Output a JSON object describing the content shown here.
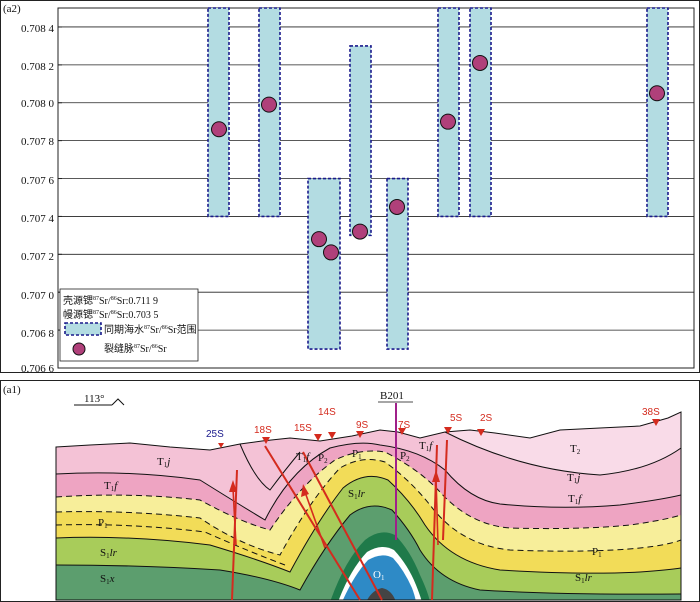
{
  "panel_a2": {
    "label": "(a2)",
    "y_ticks": [
      "0.708 4",
      "0.708 2",
      "0.708 0",
      "0.707 8",
      "0.707 6",
      "0.707 4",
      "0.707 2",
      "0.707 0",
      "0.706 8",
      "0.706 6"
    ],
    "legend": {
      "crust_prefix": "壳源锶",
      "crust_value": ":0.711 9",
      "mantle_prefix": "幔源锶",
      "mantle_value": ":0.703 5",
      "range_prefix": "同期海水",
      "range_suffix": "范围",
      "vein_prefix": "裂缝脉",
      "sr87": "87",
      "sr86": "86",
      "sr": "Sr",
      "slash": "/"
    }
  },
  "chart_data": {
    "type": "scatter",
    "ylim": [
      0.7066,
      0.7085
    ],
    "range_boxes": [
      {
        "low": 0.7074,
        "high": 0.7085
      },
      {
        "low": 0.7074,
        "high": 0.7085
      },
      {
        "low": 0.7067,
        "high": 0.7076
      },
      {
        "low": 0.7073,
        "high": 0.7083
      },
      {
        "low": 0.7067,
        "high": 0.7076
      },
      {
        "low": 0.7074,
        "high": 0.7085
      },
      {
        "low": 0.7074,
        "high": 0.7085
      },
      {
        "low": 0.7074,
        "high": 0.7085
      }
    ],
    "points": [
      {
        "box": 0,
        "value": 0.70786
      },
      {
        "box": 1,
        "value": 0.70799
      },
      {
        "box": 2,
        "value": 0.70728
      },
      {
        "box": 2,
        "value": 0.70721
      },
      {
        "box": 3,
        "value": 0.70732
      },
      {
        "box": 4,
        "value": 0.70745
      },
      {
        "box": 5,
        "value": 0.7079
      },
      {
        "box": 6,
        "value": 0.70821
      },
      {
        "box": 7,
        "value": 0.70805
      }
    ]
  },
  "panel_a1": {
    "label": "(a1)",
    "azimuth": "113°",
    "well": "B201",
    "samples": [
      "25S",
      "18S",
      "15S",
      "14S",
      "9S",
      "7S",
      "5S",
      "2S",
      "38S"
    ],
    "strata": {
      "T1j": "T",
      "T1j_sub": "1",
      "T1j_ital": "j",
      "T1f": "T",
      "T1f_sub": "1",
      "T1f_ital": "f",
      "P1": "P",
      "P1_sub": "1",
      "P2": "P",
      "P2_sub": "2",
      "S1lr": "S",
      "S1lr_sub": "1",
      "S1lr_ital": "lr",
      "S1x": "S",
      "S1x_sub": "1",
      "S1x_ital": "x",
      "O1": "O",
      "O1_sub": "1",
      "T2": "T",
      "T2_sub": "2"
    },
    "colors": {
      "T2": "#f9dbe8",
      "T1j": "#f4c2d6",
      "T1f": "#eea4c2",
      "P2": "#f7ee9a",
      "P1": "#f2dc58",
      "S1lr": "#a8cc5a",
      "S1x": "#5c9e6e",
      "O1": "#2e8ac6",
      "fault": "#d42b1e"
    }
  }
}
